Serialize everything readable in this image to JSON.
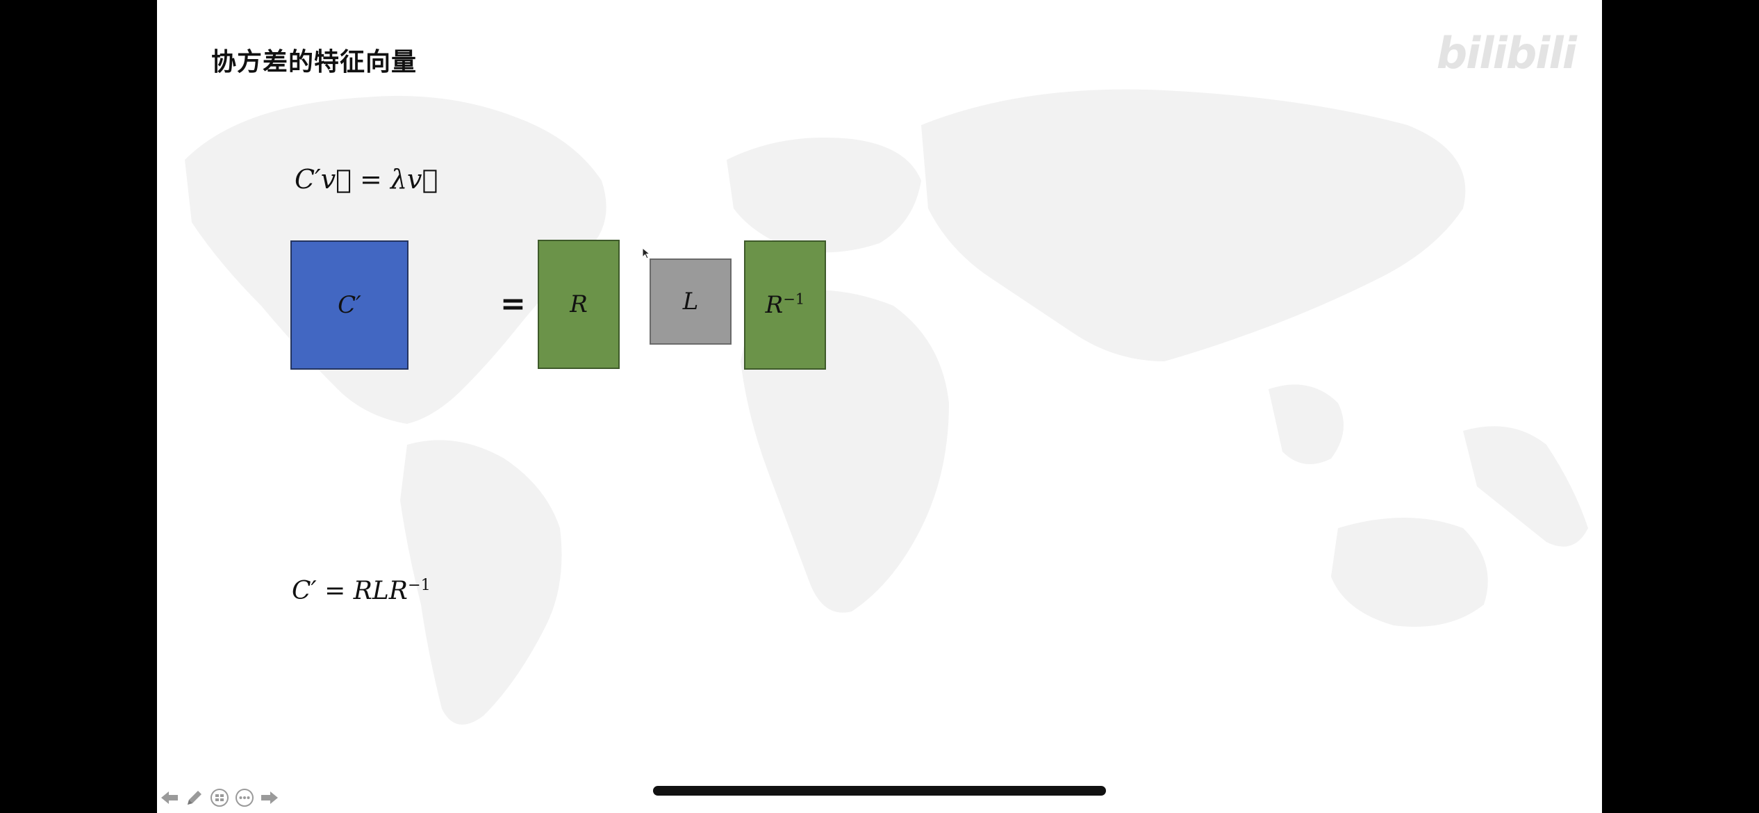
{
  "slide": {
    "title": "协方差的特征向量",
    "watermark": "bilibili"
  },
  "equations": {
    "top": "C′v⃗ = λv⃗",
    "bottom_prefix": "C′ = RLR",
    "bottom_sup": "−1"
  },
  "blocks": {
    "c_prime": "C′",
    "equals": "=",
    "r": "R",
    "l": "L",
    "r_inv_base": "R",
    "r_inv_sup": "−1"
  },
  "colors": {
    "c_prime_fill": "#4267c2",
    "r_fill": "#6b9349",
    "l_fill": "#9a9a9a",
    "background_map": "#f1f1f1"
  },
  "toolbar": {
    "icons": [
      "arrow-left-icon",
      "pen-icon",
      "slides-grid-icon",
      "more-icon",
      "arrow-right-icon"
    ]
  }
}
